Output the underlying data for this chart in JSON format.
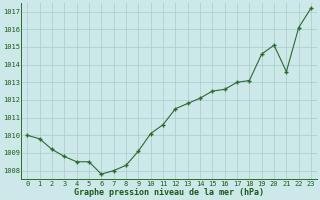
{
  "x": [
    0,
    1,
    2,
    3,
    4,
    5,
    6,
    7,
    8,
    9,
    10,
    11,
    12,
    13,
    14,
    15,
    16,
    17,
    18,
    19,
    20,
    21,
    22,
    23
  ],
  "y": [
    1010.0,
    1009.8,
    1009.2,
    1008.8,
    1008.5,
    1008.5,
    1007.8,
    1008.0,
    1008.3,
    1009.1,
    1010.1,
    1010.6,
    1011.5,
    1011.8,
    1012.1,
    1012.5,
    1012.6,
    1013.0,
    1013.1,
    1014.6,
    1015.1,
    1013.6,
    1016.1,
    1017.2
  ],
  "line_color": "#2d6a2d",
  "marker_color": "#2d6a2d",
  "bg_color": "#cce8e8",
  "grid_color": "#aacccc",
  "xlabel": "Graphe pression niveau de la mer (hPa)",
  "xlabel_color": "#1a5c1a",
  "tick_label_color": "#1a5c1a",
  "ylim": [
    1007.5,
    1017.5
  ],
  "yticks": [
    1008,
    1009,
    1010,
    1011,
    1012,
    1013,
    1014,
    1015,
    1016,
    1017
  ],
  "xticks": [
    0,
    1,
    2,
    3,
    4,
    5,
    6,
    7,
    8,
    9,
    10,
    11,
    12,
    13,
    14,
    15,
    16,
    17,
    18,
    19,
    20,
    21,
    22,
    23
  ]
}
